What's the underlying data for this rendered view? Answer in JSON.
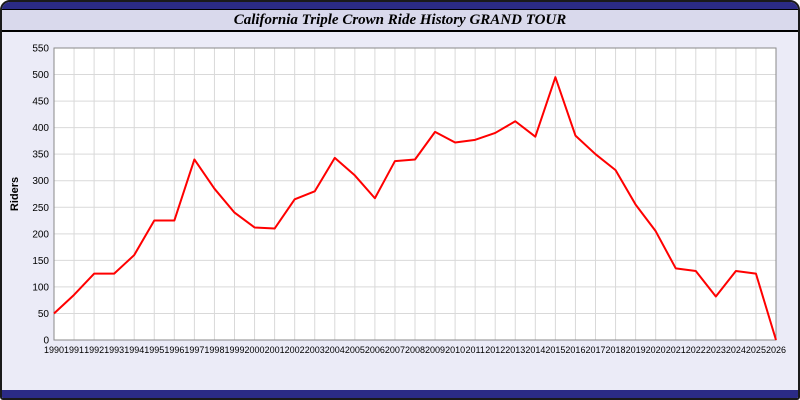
{
  "header": {
    "title": "California Triple Crown Ride History GRAND TOUR"
  },
  "colors": {
    "navy_bar": "#2b2b85",
    "page_background": "#ebebf7",
    "title_background": "#d9d9ec",
    "plot_background": "#ffffff",
    "gridline": "#d9d9d9",
    "series_line": "#ff0000"
  },
  "chart_data": {
    "type": "line",
    "title": "California Triple Crown Ride History GRAND TOUR",
    "xlabel": "",
    "ylabel": "Riders",
    "ylim": [
      0,
      550
    ],
    "ytick_step": 50,
    "grid": true,
    "legend": "none",
    "line_color": "#ff0000",
    "x": [
      1990,
      1991,
      1992,
      1993,
      1994,
      1995,
      1996,
      1997,
      1998,
      1999,
      2000,
      2001,
      2002,
      2003,
      2004,
      2005,
      2006,
      2007,
      2008,
      2009,
      2010,
      2011,
      2012,
      2013,
      2014,
      2015,
      2016,
      2017,
      2018,
      2019,
      2020,
      2021,
      2022,
      2023,
      2024,
      2025,
      2026
    ],
    "values": [
      50,
      85,
      125,
      125,
      160,
      225,
      225,
      340,
      285,
      240,
      212,
      210,
      265,
      280,
      343,
      310,
      267,
      337,
      340,
      392,
      372,
      377,
      390,
      412,
      383,
      495,
      385,
      350,
      320,
      255,
      205,
      135,
      130,
      82,
      130,
      125,
      0
    ]
  }
}
